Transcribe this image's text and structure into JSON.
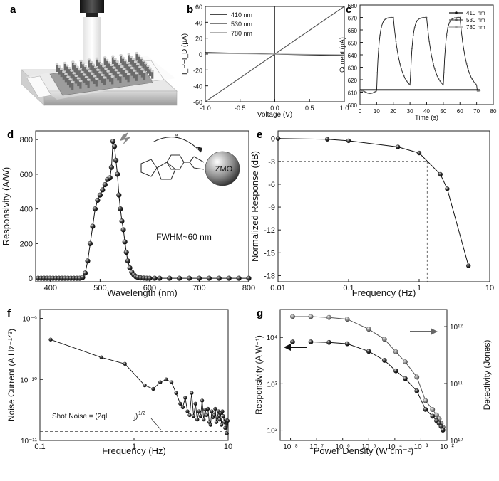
{
  "panel_labels": [
    "a",
    "b",
    "c",
    "d",
    "e",
    "f",
    "g"
  ],
  "colors": {
    "axis": "#222222",
    "ink": "#111111",
    "gray1": "#555555",
    "gray2": "#999999",
    "ball": "#2a2a2a",
    "ball_gray": "#8a8a8a"
  },
  "chart_data": [
    {
      "panel": "b",
      "type": "line",
      "xlabel": "Voltage (V)",
      "ylabel": "I_P−I_D (μA)",
      "xlim": [
        -1.0,
        1.0
      ],
      "ylim": [
        -60,
        60
      ],
      "xticks": [
        "-1.0",
        "-0.5",
        "0.0",
        "0.5",
        "1.0"
      ],
      "yticks": [
        "-60",
        "-40",
        "-20",
        "0",
        "20",
        "40",
        "60"
      ],
      "legend": [
        "410 nm",
        "530 nm",
        "780 nm"
      ],
      "series": [
        {
          "name": "410 nm",
          "x": [
            -1.0,
            1.0
          ],
          "y": [
            2,
            -2
          ]
        },
        {
          "name": "530 nm",
          "x": [
            -1.0,
            1.0
          ],
          "y": [
            -60,
            60
          ]
        },
        {
          "name": "780 nm",
          "x": [
            -1.0,
            1.0
          ],
          "y": [
            1,
            -1
          ]
        }
      ]
    },
    {
      "panel": "c",
      "type": "line",
      "xlabel": "Time (s)",
      "ylabel": "Current (μA)",
      "xlim": [
        0,
        80
      ],
      "ylim": [
        600,
        680
      ],
      "xticks": [
        "0",
        "10",
        "20",
        "30",
        "40",
        "50",
        "60",
        "70",
        "80"
      ],
      "yticks": [
        "600",
        "610",
        "620",
        "630",
        "640",
        "650",
        "660",
        "670",
        "680"
      ],
      "legend": [
        "410 nm",
        "530 nm",
        "780 nm"
      ],
      "series": [
        {
          "name": "530 nm",
          "cycles": [
            [
              10,
              20
            ],
            [
              30,
              40
            ],
            [
              50,
              60
            ]
          ],
          "baseline": 611,
          "plateau": 670,
          "end": 72
        },
        {
          "name": "410 nm",
          "level": 612,
          "end": 72
        },
        {
          "name": "780 nm",
          "level": 611.5,
          "end": 72
        }
      ]
    },
    {
      "panel": "d",
      "type": "scatter",
      "xlabel": "Wavelength (nm)",
      "ylabel": "Responsivity (A/W)",
      "xlim": [
        370,
        800
      ],
      "ylim": [
        -20,
        850
      ],
      "xticks": [
        "400",
        "500",
        "600",
        "700",
        "800"
      ],
      "yticks": [
        "0",
        "200",
        "400",
        "600",
        "800"
      ],
      "annotations": [
        "FWHM~60 nm",
        "ZMO",
        "e⁻"
      ],
      "x": [
        375,
        381,
        387,
        393,
        399,
        405,
        411,
        417,
        423,
        429,
        435,
        441,
        447,
        453,
        459,
        465,
        470,
        475,
        480,
        485,
        490,
        495,
        500,
        505,
        510,
        515,
        520,
        523,
        526,
        529,
        532,
        535,
        538,
        541,
        544,
        547,
        550,
        553,
        556,
        560,
        564,
        568,
        572,
        576,
        582,
        588,
        594,
        600,
        610,
        620,
        640,
        660,
        680,
        700,
        720,
        740,
        760,
        780,
        800
      ],
      "y": [
        0,
        0,
        0,
        0,
        0,
        0,
        0,
        0,
        0,
        0,
        0,
        0,
        0,
        0,
        0,
        5,
        30,
        100,
        200,
        300,
        400,
        450,
        480,
        510,
        540,
        570,
        580,
        640,
        790,
        760,
        680,
        600,
        480,
        400,
        330,
        280,
        210,
        150,
        100,
        60,
        35,
        20,
        10,
        5,
        2,
        1,
        0,
        0,
        0,
        0,
        0,
        0,
        0,
        0,
        0,
        0,
        0,
        0,
        0
      ]
    },
    {
      "panel": "e",
      "type": "line",
      "xlabel": "Frequency (Hz)",
      "ylabel": "Normalized Response (dB)",
      "xscale": "log",
      "xlim": [
        0.01,
        10
      ],
      "ylim": [
        -18.8,
        1
      ],
      "xticks": [
        "0.01",
        "0.1",
        "1",
        "10"
      ],
      "yticks": [
        "0",
        "-3",
        "-6",
        "-9",
        "-12",
        "-15",
        "-18"
      ],
      "x": [
        0.01,
        0.05,
        0.1,
        0.5,
        1,
        2,
        2.5,
        5
      ],
      "y": [
        0,
        -0.1,
        -0.3,
        -1.1,
        -1.9,
        -4.7,
        -6.6,
        -16.7
      ],
      "cutoff": {
        "x": 1.3,
        "y": -3
      }
    },
    {
      "panel": "f",
      "type": "line",
      "xlabel": "Frequency (Hz)",
      "ylabel": "Noise Current (A Hz⁻¹ᐟ²)",
      "xscale": "log",
      "yscale": "log",
      "xlim": [
        0.1,
        10
      ],
      "ylim": [
        1e-11,
        1.4e-09
      ],
      "xticks": [
        "0.1",
        "1",
        "10"
      ],
      "yticks": [
        "10⁻¹¹",
        "10⁻¹⁰",
        "10⁻⁹"
      ],
      "shot_noise": {
        "label": "Shot Noise = (2qI_d)^1/2",
        "level": 1.4e-11
      },
      "x": [
        0.13,
        0.45,
        0.8,
        1.3,
        1.6,
        1.9,
        2.2,
        2.5,
        2.8,
        3.1,
        3.3,
        3.5,
        3.7,
        3.9,
        4.1,
        4.3,
        4.5,
        4.7,
        4.9,
        5.1,
        5.3,
        5.5,
        5.7,
        5.9,
        6.1,
        6.3,
        6.5,
        6.7,
        6.9,
        7.1,
        7.3,
        7.5,
        7.7,
        7.9,
        8.1,
        8.3,
        8.5,
        8.7,
        8.9,
        9.1,
        9.3,
        9.5,
        9.7,
        9.9
      ],
      "y": [
        4.5e-10,
        2.3e-10,
        1.8e-10,
        8e-11,
        7e-11,
        9e-11,
        1e-10,
        9e-11,
        6e-11,
        4e-11,
        3.5e-11,
        5e-11,
        3e-11,
        2.6e-11,
        6e-11,
        2.5e-11,
        4e-11,
        2.2e-11,
        3e-11,
        2.5e-11,
        4.5e-11,
        2.2e-11,
        3.2e-11,
        2.6e-11,
        3.3e-11,
        2e-11,
        1.8e-11,
        3e-11,
        2.4e-11,
        2.6e-11,
        3.3e-11,
        2e-11,
        2.4e-11,
        3e-11,
        2.2e-11,
        2.8e-11,
        1.8e-11,
        3e-11,
        2.5e-11,
        2e-11,
        1.6e-11,
        2.2e-11,
        1.3e-11,
        2.1e-11
      ]
    },
    {
      "panel": "g",
      "type": "line",
      "xlabel": "Power Density (W cm⁻²)",
      "ylabel": "Responsivity (A W⁻¹)",
      "ylabel2": "Detectivity (Jones)",
      "xscale": "log",
      "yscale": "log",
      "xlim": [
        4e-09,
        0.01
      ],
      "ylim": [
        60,
        40000
      ],
      "ylim2": [
        10000000000.0,
        2000000000000.0
      ],
      "xticks": [
        "10⁻⁸",
        "10⁻⁷",
        "10⁻⁶",
        "10⁻⁵",
        "10⁻⁴",
        "10⁻³",
        "10⁻²"
      ],
      "yticks": [
        "10²",
        "10³",
        "10⁴"
      ],
      "yticks2": [
        "10¹⁰",
        "10¹¹",
        "10¹²"
      ],
      "series": [
        {
          "name": "Responsivity",
          "axis": "left",
          "x": [
            1.2e-08,
            6e-08,
            3e-07,
            1.5e-06,
            1e-05,
            4e-05,
            0.00011,
            0.00025,
            0.0007,
            0.0015,
            0.0028,
            0.004,
            0.005,
            0.006,
            0.007
          ],
          "y": [
            8000,
            8000,
            7800,
            7300,
            5000,
            3200,
            1900,
            1300,
            700,
            280,
            200,
            160,
            140,
            120,
            100
          ]
        },
        {
          "name": "Detectivity",
          "axis": "right",
          "x": [
            1.2e-08,
            6e-08,
            3e-07,
            1.5e-06,
            1e-05,
            4e-05,
            0.00011,
            0.00025,
            0.0007,
            0.0015,
            0.0028,
            0.004,
            0.005,
            0.006,
            0.007
          ],
          "y": [
            1500000000000.0,
            1500000000000.0,
            1450000000000.0,
            1350000000000.0,
            900000000000.0,
            600000000000.0,
            360000000000.0,
            240000000000.0,
            130000000000.0,
            50000000000.0,
            35000000000.0,
            28000000000.0,
            24000000000.0,
            20000000000.0,
            17000000000.0
          ]
        }
      ]
    }
  ]
}
